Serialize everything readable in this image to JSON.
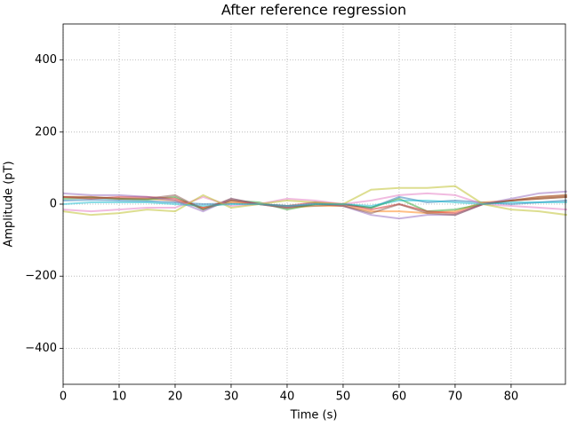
{
  "chart_data": {
    "type": "line",
    "title": "After reference regression",
    "xlabel": "Time (s)",
    "ylabel": "Amplitude (pT)",
    "x": [
      0,
      5,
      10,
      15,
      20,
      25,
      30,
      35,
      40,
      45,
      50,
      55,
      60,
      65,
      70,
      75,
      80,
      85,
      90
    ],
    "series": [
      {
        "color": "#1f77b4",
        "values": [
          10,
          12,
          10,
          8,
          5,
          0,
          2,
          0,
          -5,
          -5,
          0,
          -10,
          20,
          5,
          10,
          5,
          0,
          5,
          10
        ]
      },
      {
        "color": "#ff7f0e",
        "values": [
          20,
          20,
          15,
          15,
          10,
          -10,
          5,
          0,
          -10,
          -5,
          -5,
          -20,
          -20,
          -25,
          -20,
          5,
          10,
          20,
          25
        ]
      },
      {
        "color": "#2ca02c",
        "values": [
          15,
          18,
          15,
          12,
          20,
          -15,
          10,
          5,
          -15,
          0,
          0,
          -10,
          15,
          -20,
          -15,
          0,
          10,
          15,
          20
        ]
      },
      {
        "color": "#d62728",
        "values": [
          20,
          15,
          20,
          20,
          15,
          -10,
          10,
          0,
          -5,
          5,
          0,
          -15,
          0,
          -20,
          -25,
          0,
          10,
          15,
          20
        ]
      },
      {
        "color": "#9467bd",
        "values": [
          30,
          25,
          25,
          20,
          10,
          -20,
          15,
          0,
          -10,
          5,
          -5,
          -30,
          -40,
          -30,
          -30,
          0,
          15,
          30,
          35
        ]
      },
      {
        "color": "#8c564b",
        "values": [
          20,
          20,
          15,
          15,
          25,
          -15,
          15,
          0,
          -10,
          0,
          -5,
          -25,
          0,
          -25,
          -30,
          0,
          10,
          20,
          25
        ]
      },
      {
        "color": "#e377c2",
        "values": [
          -15,
          -20,
          -15,
          -10,
          -10,
          20,
          -5,
          0,
          15,
          10,
          0,
          10,
          25,
          30,
          25,
          0,
          -5,
          -10,
          -15
        ]
      },
      {
        "color": "#bcbd22",
        "values": [
          -20,
          -30,
          -25,
          -15,
          -20,
          25,
          -10,
          0,
          10,
          5,
          0,
          40,
          45,
          45,
          50,
          0,
          -15,
          -20,
          -30
        ]
      },
      {
        "color": "#17becf",
        "values": [
          0,
          5,
          5,
          5,
          0,
          -5,
          0,
          0,
          -5,
          0,
          0,
          -5,
          10,
          10,
          5,
          0,
          5,
          5,
          5
        ]
      }
    ],
    "alpha": 0.5,
    "xlim": [
      0,
      89.7
    ],
    "ylim": [
      -500,
      500
    ],
    "xticks": [
      0,
      10,
      20,
      30,
      40,
      50,
      60,
      70,
      80
    ],
    "yticks": [
      {
        "value": -400,
        "label": "−400"
      },
      {
        "value": -200,
        "label": "−200"
      },
      0,
      200,
      400
    ],
    "grid": true
  }
}
